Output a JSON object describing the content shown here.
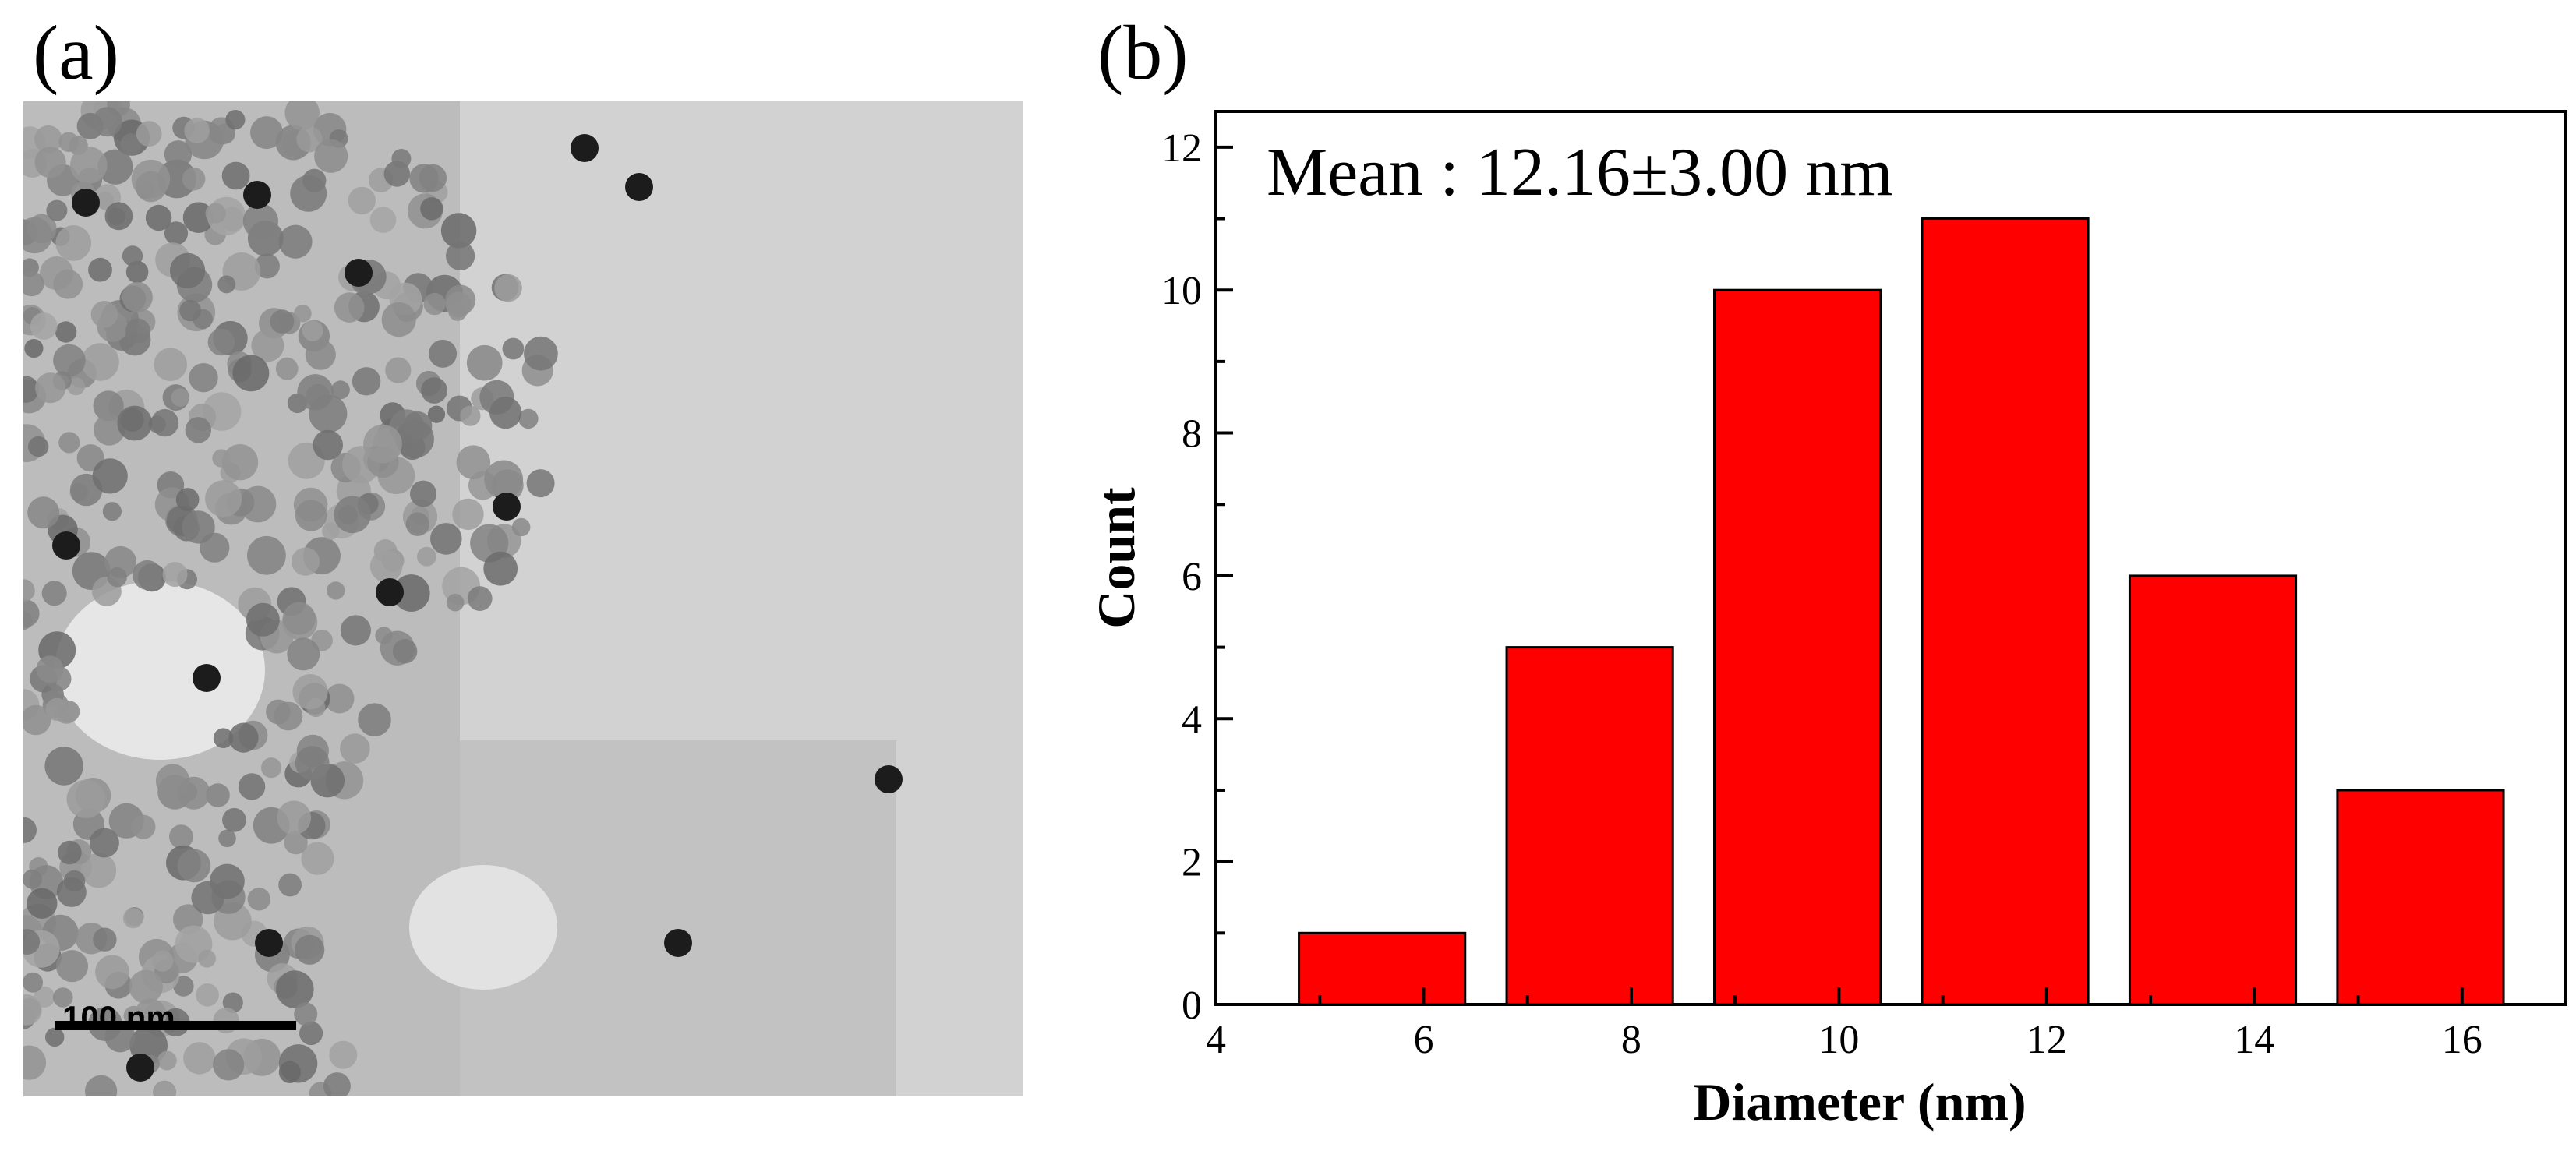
{
  "panels": {
    "a_label": "(a)",
    "b_label": "(b)"
  },
  "micrograph": {
    "scale_bar_label": "100 nm"
  },
  "chart_data": {
    "type": "bar",
    "annotation": "Mean : 12.16±3.00 nm",
    "xlabel": "Diameter (nm)",
    "ylabel": "Count",
    "xlim": [
      4,
      17
    ],
    "ylim": [
      0,
      12.5
    ],
    "x_ticks": [
      4,
      6,
      8,
      10,
      12,
      14,
      16
    ],
    "y_ticks": [
      0,
      2,
      4,
      6,
      8,
      10,
      12
    ],
    "bins": [
      {
        "start": 4.8,
        "end": 6.4,
        "count": 1
      },
      {
        "start": 6.8,
        "end": 8.4,
        "count": 5
      },
      {
        "start": 8.8,
        "end": 10.4,
        "count": 10
      },
      {
        "start": 10.8,
        "end": 12.4,
        "count": 11
      },
      {
        "start": 12.8,
        "end": 14.4,
        "count": 6
      },
      {
        "start": 14.8,
        "end": 16.4,
        "count": 3
      }
    ],
    "bar_color": "#ff0000",
    "grid": false
  }
}
